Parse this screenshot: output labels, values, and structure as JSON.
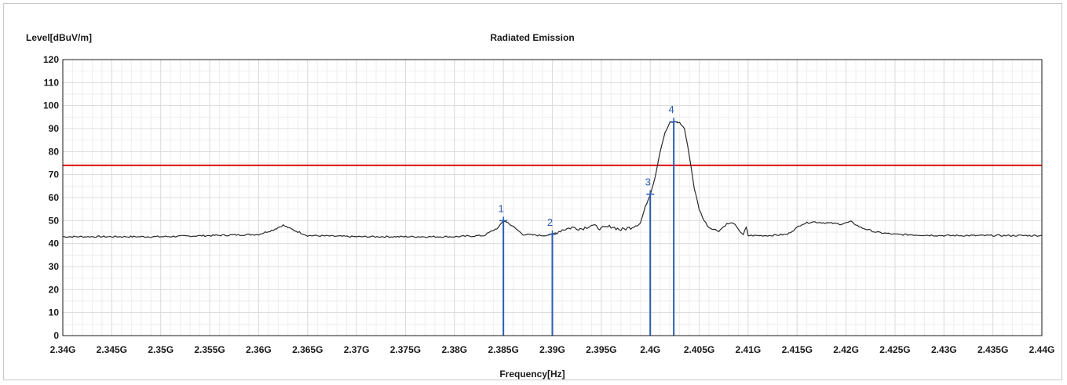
{
  "chart_data": {
    "type": "line",
    "title": "Radiated Emission",
    "ylabel": "Level[dBuV/m]",
    "xlabel": "Frequency[Hz]",
    "xlim": [
      2.34,
      2.44
    ],
    "ylim": [
      0,
      120
    ],
    "grid": true,
    "y_ticks": [
      0,
      10,
      20,
      30,
      40,
      50,
      60,
      70,
      80,
      90,
      100,
      110,
      120
    ],
    "x_ticks": [
      2.34,
      2.345,
      2.35,
      2.355,
      2.36,
      2.365,
      2.37,
      2.375,
      2.38,
      2.385,
      2.39,
      2.395,
      2.4,
      2.405,
      2.41,
      2.415,
      2.42,
      2.425,
      2.43,
      2.435,
      2.44
    ],
    "x_tick_labels": [
      "2.34G",
      "2.345G",
      "2.35G",
      "2.355G",
      "2.36G",
      "2.365G",
      "2.37G",
      "2.375G",
      "2.38G",
      "2.385G",
      "2.39G",
      "2.395G",
      "2.4G",
      "2.405G",
      "2.41G",
      "2.415G",
      "2.42G",
      "2.425G",
      "2.43G",
      "2.435G",
      "2.44G"
    ],
    "limit_line": {
      "value": 74,
      "color": "#e01010"
    },
    "series": [
      {
        "color": "#2a2a2a",
        "x": [
          2.34,
          2.345,
          2.35,
          2.355,
          2.36,
          2.3615,
          2.3625,
          2.3635,
          2.365,
          2.37,
          2.375,
          2.38,
          2.383,
          2.3845,
          2.385,
          2.3855,
          2.387,
          2.389,
          2.39,
          2.391,
          2.392,
          2.393,
          2.394,
          2.395,
          2.396,
          2.397,
          2.398,
          2.399,
          2.3995,
          2.4,
          2.4005,
          2.401,
          2.4015,
          2.402,
          2.4025,
          2.403,
          2.4035,
          2.404,
          2.4045,
          2.405,
          2.4055,
          2.406,
          2.407,
          2.4078,
          2.4085,
          2.409,
          2.4095,
          2.4098,
          2.41,
          2.412,
          2.414,
          2.4155,
          2.4165,
          2.418,
          2.4195,
          2.4205,
          2.4215,
          2.423,
          2.425,
          2.43,
          2.435,
          2.44
        ],
        "y": [
          43,
          43,
          43,
          43.5,
          44,
          46,
          48,
          46,
          43.5,
          43,
          43,
          43,
          43.5,
          47,
          50,
          49,
          44,
          43.5,
          44,
          46,
          47,
          46.5,
          48,
          46.5,
          47.5,
          46,
          47,
          49,
          56,
          61.5,
          69,
          80,
          88,
          92.5,
          93,
          92.5,
          90,
          78,
          64,
          55,
          50,
          47,
          45.5,
          48.5,
          49,
          46,
          44,
          47,
          43.5,
          43.5,
          44,
          48.5,
          49.5,
          49,
          48.5,
          49.5,
          47,
          45,
          44,
          43.5,
          43.5,
          43.5
        ]
      }
    ],
    "markers": [
      {
        "label": "1",
        "x": 2.385,
        "y": 50
      },
      {
        "label": "2",
        "x": 2.39,
        "y": 44
      },
      {
        "label": "3",
        "x": 2.4,
        "y": 61.5
      },
      {
        "label": "4",
        "x": 2.4024,
        "y": 93
      }
    ],
    "colors": {
      "grid": "#dcdcdc",
      "axis": "#1a1a1a",
      "marker": "#2a5db0",
      "trace": "#2a2a2a",
      "limit": "#e01010"
    }
  }
}
